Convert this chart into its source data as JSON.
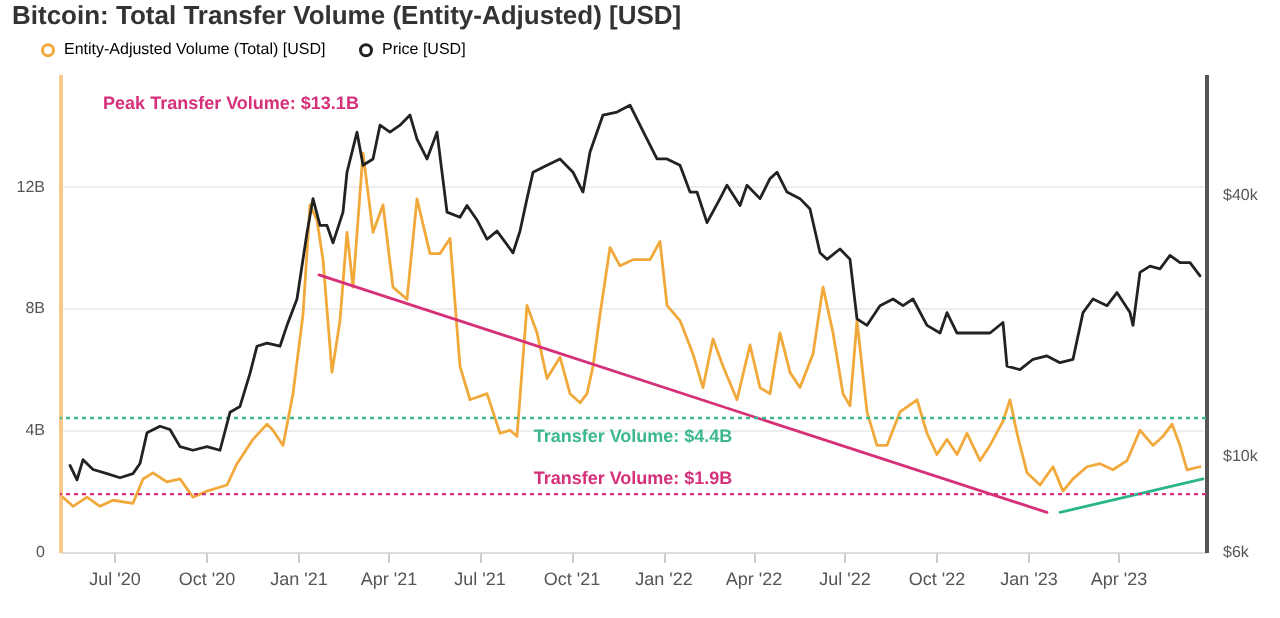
{
  "chart_data": {
    "type": "line",
    "title": "Bitcoin: Total Transfer Volume (Entity-Adjusted) [USD]",
    "xlim": [
      "2020-05-08",
      "2023-06-28"
    ],
    "xticks": [
      {
        "value": "2020-07-01",
        "label": "Jul '20"
      },
      {
        "value": "2020-10-01",
        "label": "Oct '20"
      },
      {
        "value": "2021-01-01",
        "label": "Jan '21"
      },
      {
        "value": "2021-04-01",
        "label": "Apr '21"
      },
      {
        "value": "2021-07-01",
        "label": "Jul '21"
      },
      {
        "value": "2021-10-01",
        "label": "Oct '21"
      },
      {
        "value": "2022-01-01",
        "label": "Jan '22"
      },
      {
        "value": "2022-04-01",
        "label": "Apr '22"
      },
      {
        "value": "2022-07-01",
        "label": "Jul '22"
      },
      {
        "value": "2022-10-01",
        "label": "Oct '22"
      },
      {
        "value": "2023-01-01",
        "label": "Jan '23"
      },
      {
        "value": "2023-04-01",
        "label": "Apr '23"
      }
    ],
    "ylim": [
      0,
      15.7
    ],
    "yticks": [
      0,
      {
        "value": 4,
        "label": "4B"
      },
      {
        "value": 8,
        "label": "8B"
      },
      {
        "value": 12,
        "label": "12B"
      }
    ],
    "y2lim": [
      6000,
      76000
    ],
    "y2ticks": [
      {
        "value": 6000,
        "label": "$6k"
      },
      {
        "value": 10000,
        "label": "$10k"
      },
      {
        "value": 40000,
        "label": "$40k"
      }
    ],
    "log": "y2",
    "grid": "y",
    "legend": "top left",
    "series": [
      {
        "name": "Entity-Adjusted Volume (Total) [USD]",
        "color": "#f2a93b",
        "x": [
          "2020-05-11",
          "2020-05-21",
          "2020-06-04",
          "2020-06-17",
          "2020-06-30",
          "2020-07-20",
          "2020-07-30",
          "2020-08-09",
          "2020-08-23",
          "2020-09-05",
          "2020-09-18",
          "2020-10-02",
          "2020-10-22",
          "2020-11-01",
          "2020-11-17",
          "2020-12-01",
          "2020-12-07",
          "2020-12-17",
          "2020-12-27",
          "2021-01-06",
          "2021-01-13",
          "2021-01-20",
          "2021-01-26",
          "2021-02-04",
          "2021-02-12",
          "2021-02-19",
          "2021-02-25",
          "2021-03-07",
          "2021-03-17",
          "2021-03-27",
          "2021-04-06",
          "2021-04-20",
          "2021-04-30",
          "2021-05-13",
          "2021-05-23",
          "2021-06-02",
          "2021-06-12",
          "2021-06-22",
          "2021-07-09",
          "2021-07-22",
          "2021-08-01",
          "2021-08-08",
          "2021-08-18",
          "2021-08-28",
          "2021-09-07",
          "2021-09-20",
          "2021-09-30",
          "2021-10-10",
          "2021-10-17",
          "2021-10-23",
          "2021-10-30",
          "2021-11-09",
          "2021-11-19",
          "2021-12-02",
          "2021-12-19",
          "2021-12-29",
          "2022-01-05",
          "2022-01-18",
          "2022-01-31",
          "2022-02-10",
          "2022-02-20",
          "2022-03-02",
          "2022-03-16",
          "2022-03-29",
          "2022-04-08",
          "2022-04-18",
          "2022-04-28",
          "2022-05-08",
          "2022-05-18",
          "2022-05-31",
          "2022-06-10",
          "2022-06-20",
          "2022-06-30",
          "2022-07-07",
          "2022-07-14",
          "2022-07-24",
          "2022-08-03",
          "2022-08-13",
          "2022-08-26",
          "2022-09-12",
          "2022-09-22",
          "2022-10-02",
          "2022-10-12",
          "2022-10-22",
          "2022-11-01",
          "2022-11-14",
          "2022-11-24",
          "2022-12-07",
          "2022-12-14",
          "2022-12-21",
          "2022-12-31",
          "2023-01-13",
          "2023-01-26",
          "2023-02-05",
          "2023-02-15",
          "2023-03-01",
          "2023-03-14",
          "2023-03-27",
          "2023-04-10",
          "2023-04-23",
          "2023-05-06",
          "2023-05-16",
          "2023-05-25",
          "2023-06-02",
          "2023-06-09",
          "2023-06-22"
        ],
        "values": [
          1.8,
          1.5,
          1.8,
          1.5,
          1.7,
          1.6,
          2.4,
          2.6,
          2.3,
          2.4,
          1.8,
          2.0,
          2.2,
          2.9,
          3.7,
          4.2,
          4.0,
          3.5,
          5.2,
          7.8,
          11.4,
          10.9,
          9.6,
          5.9,
          7.6,
          10.5,
          8.7,
          13.1,
          10.5,
          11.4,
          8.7,
          8.3,
          11.6,
          9.8,
          9.8,
          10.3,
          6.1,
          5.0,
          5.2,
          3.9,
          4.0,
          3.8,
          8.1,
          7.2,
          5.7,
          6.4,
          5.2,
          4.9,
          5.2,
          6.1,
          7.8,
          10.0,
          9.4,
          9.6,
          9.6,
          10.2,
          8.1,
          7.6,
          6.5,
          5.4,
          7.0,
          6.1,
          5.0,
          6.8,
          5.4,
          5.2,
          7.2,
          5.9,
          5.4,
          6.5,
          8.7,
          7.2,
          5.2,
          4.8,
          7.6,
          4.6,
          3.5,
          3.5,
          4.6,
          5.0,
          3.9,
          3.2,
          3.7,
          3.2,
          3.9,
          3.0,
          3.5,
          4.3,
          5.0,
          3.9,
          2.6,
          2.2,
          2.8,
          2.0,
          2.4,
          2.8,
          2.9,
          2.7,
          3.0,
          4.0,
          3.5,
          3.8,
          4.2,
          3.5,
          2.7,
          2.8
        ]
      },
      {
        "name": "Price [USD]",
        "color": "#222222",
        "axis": "y2",
        "x": [
          "2020-05-18",
          "2020-05-25",
          "2020-05-31",
          "2020-06-10",
          "2020-06-24",
          "2020-07-07",
          "2020-07-20",
          "2020-07-27",
          "2020-08-03",
          "2020-08-16",
          "2020-08-26",
          "2020-09-05",
          "2020-09-18",
          "2020-10-02",
          "2020-10-15",
          "2020-10-25",
          "2020-11-04",
          "2020-11-14",
          "2020-11-21",
          "2020-12-01",
          "2020-12-14",
          "2020-12-21",
          "2020-12-31",
          "2021-01-10",
          "2021-01-16",
          "2021-01-23",
          "2021-01-30",
          "2021-02-05",
          "2021-02-15",
          "2021-02-19",
          "2021-03-01",
          "2021-03-07",
          "2021-03-17",
          "2021-03-24",
          "2021-04-03",
          "2021-04-13",
          "2021-04-23",
          "2021-04-30",
          "2021-05-10",
          "2021-05-20",
          "2021-05-30",
          "2021-06-12",
          "2021-06-19",
          "2021-06-29",
          "2021-07-09",
          "2021-07-19",
          "2021-08-04",
          "2021-08-11",
          "2021-08-18",
          "2021-08-24",
          "2021-09-07",
          "2021-09-20",
          "2021-10-03",
          "2021-10-13",
          "2021-10-20",
          "2021-11-02",
          "2021-11-16",
          "2021-11-29",
          "2021-12-16",
          "2021-12-26",
          "2022-01-05",
          "2022-01-18",
          "2022-01-28",
          "2022-02-04",
          "2022-02-14",
          "2022-02-27",
          "2022-03-06",
          "2022-03-19",
          "2022-03-26",
          "2022-04-08",
          "2022-04-18",
          "2022-04-25",
          "2022-05-05",
          "2022-05-18",
          "2022-05-28",
          "2022-06-07",
          "2022-06-14",
          "2022-06-27",
          "2022-07-07",
          "2022-07-14",
          "2022-07-24",
          "2022-08-06",
          "2022-08-19",
          "2022-08-29",
          "2022-09-08",
          "2022-09-22",
          "2022-10-05",
          "2022-10-12",
          "2022-10-22",
          "2022-11-07",
          "2022-11-24",
          "2022-12-07",
          "2022-12-11",
          "2022-12-24",
          "2023-01-06",
          "2023-01-20",
          "2023-02-02",
          "2023-02-15",
          "2023-02-25",
          "2023-03-07",
          "2023-03-21",
          "2023-03-31",
          "2023-04-13",
          "2023-04-16",
          "2023-04-23",
          "2023-05-03",
          "2023-05-13",
          "2023-05-23",
          "2023-06-02",
          "2023-06-12",
          "2023-06-22"
        ],
        "values": [
          9500,
          8800,
          9800,
          9300,
          9100,
          8900,
          9100,
          9600,
          11300,
          11700,
          11500,
          10500,
          10300,
          10500,
          10300,
          12600,
          13000,
          15500,
          17900,
          18200,
          17900,
          20000,
          23000,
          32700,
          39200,
          34000,
          34000,
          31000,
          36500,
          45100,
          55800,
          46800,
          48400,
          57900,
          55800,
          57900,
          61100,
          53800,
          48400,
          55800,
          36500,
          35500,
          37800,
          35000,
          31600,
          33000,
          29400,
          33000,
          39200,
          45100,
          46800,
          48400,
          45100,
          40600,
          50200,
          61100,
          62100,
          64400,
          53800,
          48400,
          48400,
          46800,
          40600,
          40600,
          34500,
          39200,
          42100,
          37800,
          42100,
          39200,
          43600,
          45100,
          40600,
          39200,
          37100,
          29400,
          28400,
          30000,
          28400,
          20700,
          20000,
          22200,
          23000,
          22200,
          23000,
          20000,
          19200,
          21400,
          19200,
          19200,
          19200,
          20300,
          16100,
          15800,
          16700,
          17000,
          16400,
          16700,
          21400,
          23000,
          22200,
          23800,
          21400,
          20000,
          26500,
          27400,
          27000,
          29000,
          27900,
          27900,
          26000
        ]
      },
      {
        "type": "line",
        "color": "#d6307a",
        "x": [
          "2021-01-22",
          "2023-01-20"
        ],
        "values": [
          9.1,
          1.3
        ]
      },
      {
        "type": "line",
        "color": "#2bb58a",
        "x": [
          "2023-02-02",
          "2023-06-25"
        ],
        "values": [
          1.3,
          2.4
        ]
      }
    ],
    "ref_lines": [
      {
        "axis": "y",
        "value": 4.4,
        "label": "Transfer Volume: $4.4B",
        "color": "#3cb88c",
        "line_style": "dotted"
      },
      {
        "axis": "y",
        "value": 1.9,
        "label": "Transfer Volume: $1.9B",
        "color": "#d6307a",
        "line_style": "dotted"
      }
    ],
    "annotations": [
      {
        "text": "Peak Transfer Volume: $13.1B",
        "x": "2021-03-07",
        "y": 13.1
      }
    ]
  }
}
